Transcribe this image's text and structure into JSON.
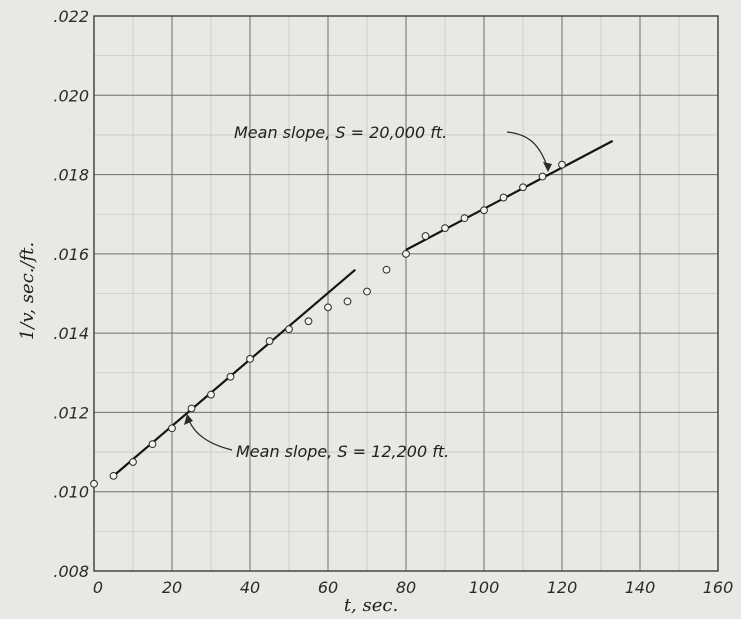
{
  "chart_data": {
    "type": "scatter",
    "title": "",
    "xlabel": "t, sec.",
    "ylabel": "1/v, sec./ft.",
    "xlim": [
      0,
      160
    ],
    "ylim": [
      0.008,
      0.022
    ],
    "grid": true,
    "x_ticks": [
      {
        "value": 0,
        "label": "0"
      },
      {
        "value": 20,
        "label": "20"
      },
      {
        "value": 40,
        "label": "40"
      },
      {
        "value": 60,
        "label": "60"
      },
      {
        "value": 80,
        "label": "80"
      },
      {
        "value": 100,
        "label": "100"
      },
      {
        "value": 120,
        "label": "120"
      },
      {
        "value": 140,
        "label": "140"
      },
      {
        "value": 160,
        "label": "160"
      }
    ],
    "y_ticks": [
      {
        "value": 0.008,
        "label": ".008"
      },
      {
        "value": 0.01,
        "label": ".010"
      },
      {
        "value": 0.012,
        "label": ".012"
      },
      {
        "value": 0.014,
        "label": ".014"
      },
      {
        "value": 0.016,
        "label": ".016"
      },
      {
        "value": 0.018,
        "label": ".018"
      },
      {
        "value": 0.02,
        "label": ".020"
      },
      {
        "value": 0.022,
        "label": ".022"
      }
    ],
    "points": [
      {
        "x": 0,
        "y": 0.0102
      },
      {
        "x": 5,
        "y": 0.0104
      },
      {
        "x": 10,
        "y": 0.01075
      },
      {
        "x": 15,
        "y": 0.0112
      },
      {
        "x": 20,
        "y": 0.0116
      },
      {
        "x": 25,
        "y": 0.0121
      },
      {
        "x": 30,
        "y": 0.01245
      },
      {
        "x": 35,
        "y": 0.0129
      },
      {
        "x": 40,
        "y": 0.01335
      },
      {
        "x": 45,
        "y": 0.0138
      },
      {
        "x": 50,
        "y": 0.0141
      },
      {
        "x": 55,
        "y": 0.0143
      },
      {
        "x": 60,
        "y": 0.01465
      },
      {
        "x": 65,
        "y": 0.0148
      },
      {
        "x": 70,
        "y": 0.01505
      },
      {
        "x": 75,
        "y": 0.0156
      },
      {
        "x": 80,
        "y": 0.016
      },
      {
        "x": 85,
        "y": 0.01645
      },
      {
        "x": 90,
        "y": 0.01665
      },
      {
        "x": 95,
        "y": 0.0169
      },
      {
        "x": 100,
        "y": 0.0171
      },
      {
        "x": 105,
        "y": 0.01742
      },
      {
        "x": 110,
        "y": 0.01768
      },
      {
        "x": 115,
        "y": 0.01795
      },
      {
        "x": 120,
        "y": 0.01825
      }
    ],
    "fit_lines": [
      {
        "x": [
          5,
          67
        ],
        "y": [
          0.0104,
          0.0156
        ]
      },
      {
        "x": [
          80,
          133
        ],
        "y": [
          0.0161,
          0.01885
        ]
      }
    ],
    "annotations": [
      {
        "text": "Mean slope, S = 20,000 ft.",
        "target": {
          "x": 116,
          "y": 0.018
        }
      },
      {
        "text": "Mean slope, S = 12,200 ft.",
        "target": {
          "x": 24,
          "y": 0.0119
        }
      }
    ]
  }
}
